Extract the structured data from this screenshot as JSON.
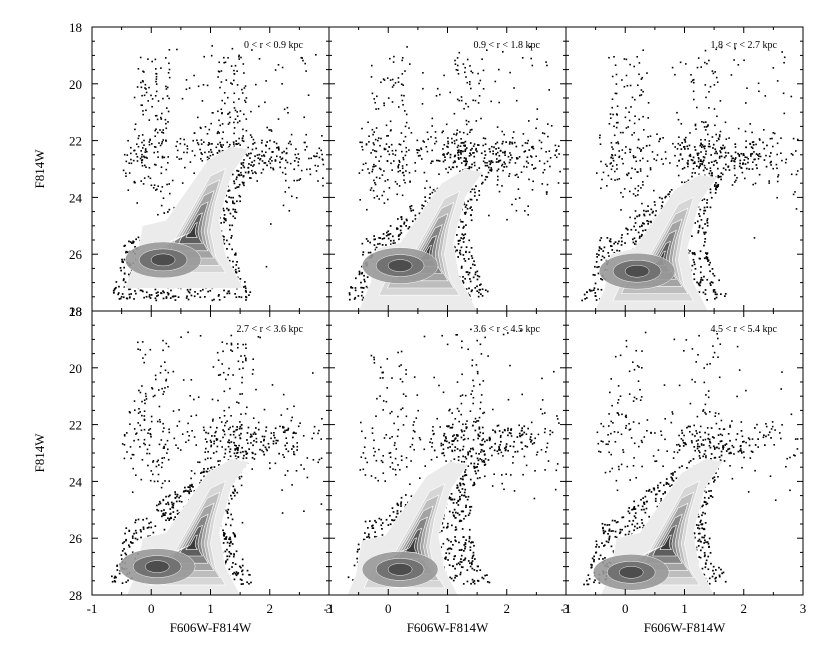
{
  "chart_data": {
    "type": "scatter",
    "description_kind": "color-magnitude diagram panels",
    "xlabel": "F606W-F814W",
    "ylabel": "F814W",
    "xlim": [
      -1,
      3
    ],
    "ylim": [
      28,
      18
    ],
    "y_inverted": true,
    "x_ticks": [
      "-1",
      "0",
      "1",
      "2",
      "3"
    ],
    "y_ticks": [
      "18",
      "20",
      "22",
      "24",
      "26",
      "28"
    ],
    "panels": [
      {
        "label": "0 < r < 0.9 kpc",
        "core": [
          0.7,
          25.2
        ],
        "lobe": [
          0.2,
          26.2
        ]
      },
      {
        "label": "0.9 < r < 1.8 kpc",
        "core": [
          0.65,
          26.0
        ],
        "lobe": [
          0.2,
          26.4
        ]
      },
      {
        "label": "1.8 < r < 2.7 kpc",
        "core": [
          0.6,
          26.2
        ],
        "lobe": [
          0.2,
          26.6
        ]
      },
      {
        "label": "2.7 < r < 3.6 kpc",
        "core": [
          0.7,
          26.2
        ],
        "lobe": [
          0.1,
          27.0
        ]
      },
      {
        "label": "3.6 < r < 4.5 kpc",
        "core": [
          0.4,
          26.3
        ],
        "lobe": [
          0.2,
          27.1
        ]
      },
      {
        "label": "4.5 < r < 5.4 kpc",
        "core": [
          0.7,
          26.2
        ],
        "lobe": [
          0.1,
          27.2
        ]
      }
    ],
    "grid": false,
    "colors": {
      "points": "#000000",
      "contour_light": "#e6e6e6",
      "contour_dark": "#3a3a3a"
    }
  }
}
